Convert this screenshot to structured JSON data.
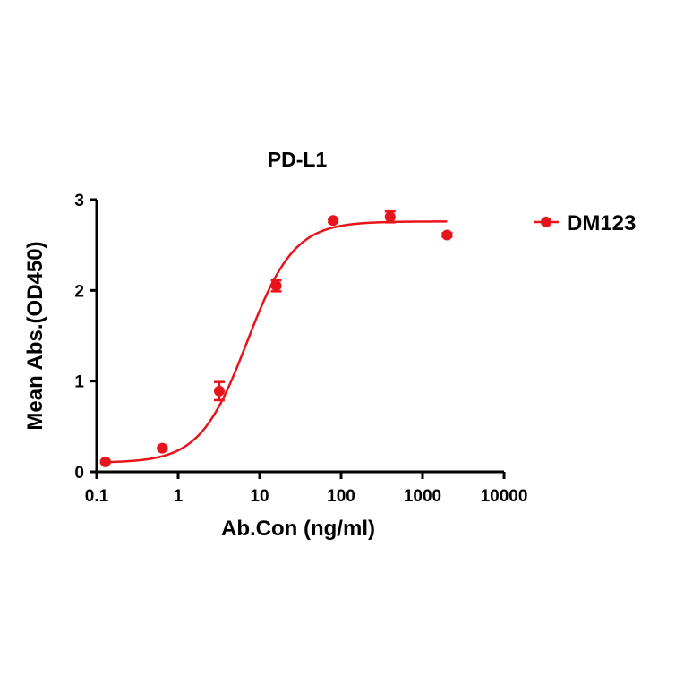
{
  "chart_data": {
    "type": "scatter",
    "title": "PD-L1",
    "xlabel": "Ab.Con (ng/ml)",
    "ylabel": "Mean Abs.(OD450)",
    "xscale": "log",
    "xlim": [
      0.1,
      10000
    ],
    "ylim": [
      0,
      3
    ],
    "x_ticks": [
      0.1,
      1,
      10,
      100,
      1000,
      10000
    ],
    "x_tick_labels": [
      "0.1",
      "1",
      "10",
      "100",
      "1000",
      "10000"
    ],
    "y_ticks": [
      0,
      1,
      2,
      3
    ],
    "y_tick_labels": [
      "0",
      "1",
      "2",
      "3"
    ],
    "legend": "right",
    "grid": false,
    "series": [
      {
        "name": "DM123",
        "color": "#e8141b",
        "points": [
          {
            "x": 0.128,
            "y": 0.11,
            "err": 0.01
          },
          {
            "x": 0.64,
            "y": 0.26,
            "err": 0.01
          },
          {
            "x": 3.2,
            "y": 0.89,
            "err": 0.1
          },
          {
            "x": 16,
            "y": 2.05,
            "err": 0.06
          },
          {
            "x": 80,
            "y": 2.77,
            "err": 0.02
          },
          {
            "x": 400,
            "y": 2.81,
            "err": 0.06
          },
          {
            "x": 2000,
            "y": 2.61,
            "err": 0.02
          }
        ],
        "fit": {
          "bottom": 0.1,
          "top": 2.76,
          "ec50": 7.0,
          "hill": 1.5,
          "x_range": [
            0.128,
            2000
          ]
        }
      }
    ]
  }
}
